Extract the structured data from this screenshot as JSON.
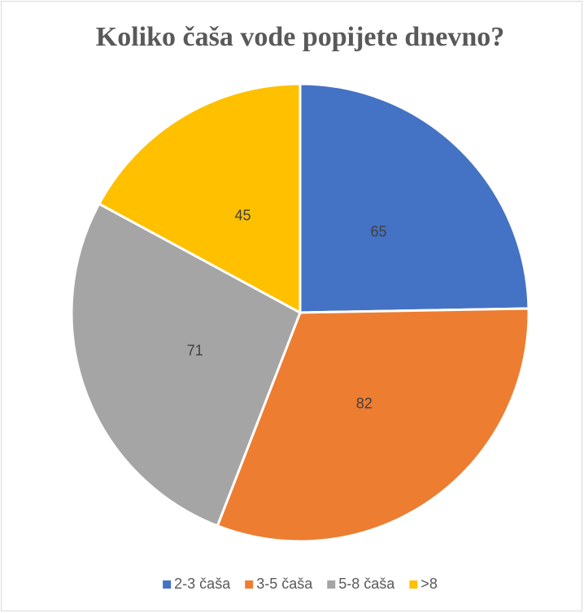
{
  "chart_data": {
    "type": "pie",
    "title": "Koliko čaša vode popijete dnevno?",
    "categories": [
      "2-3 čaša",
      "3-5 čaša",
      "5-8 čaša",
      ">8"
    ],
    "values": [
      65,
      82,
      71,
      45
    ],
    "colors": [
      "#4472c4",
      "#ed7d31",
      "#a5a5a5",
      "#ffc000"
    ],
    "legend": "bottom"
  }
}
